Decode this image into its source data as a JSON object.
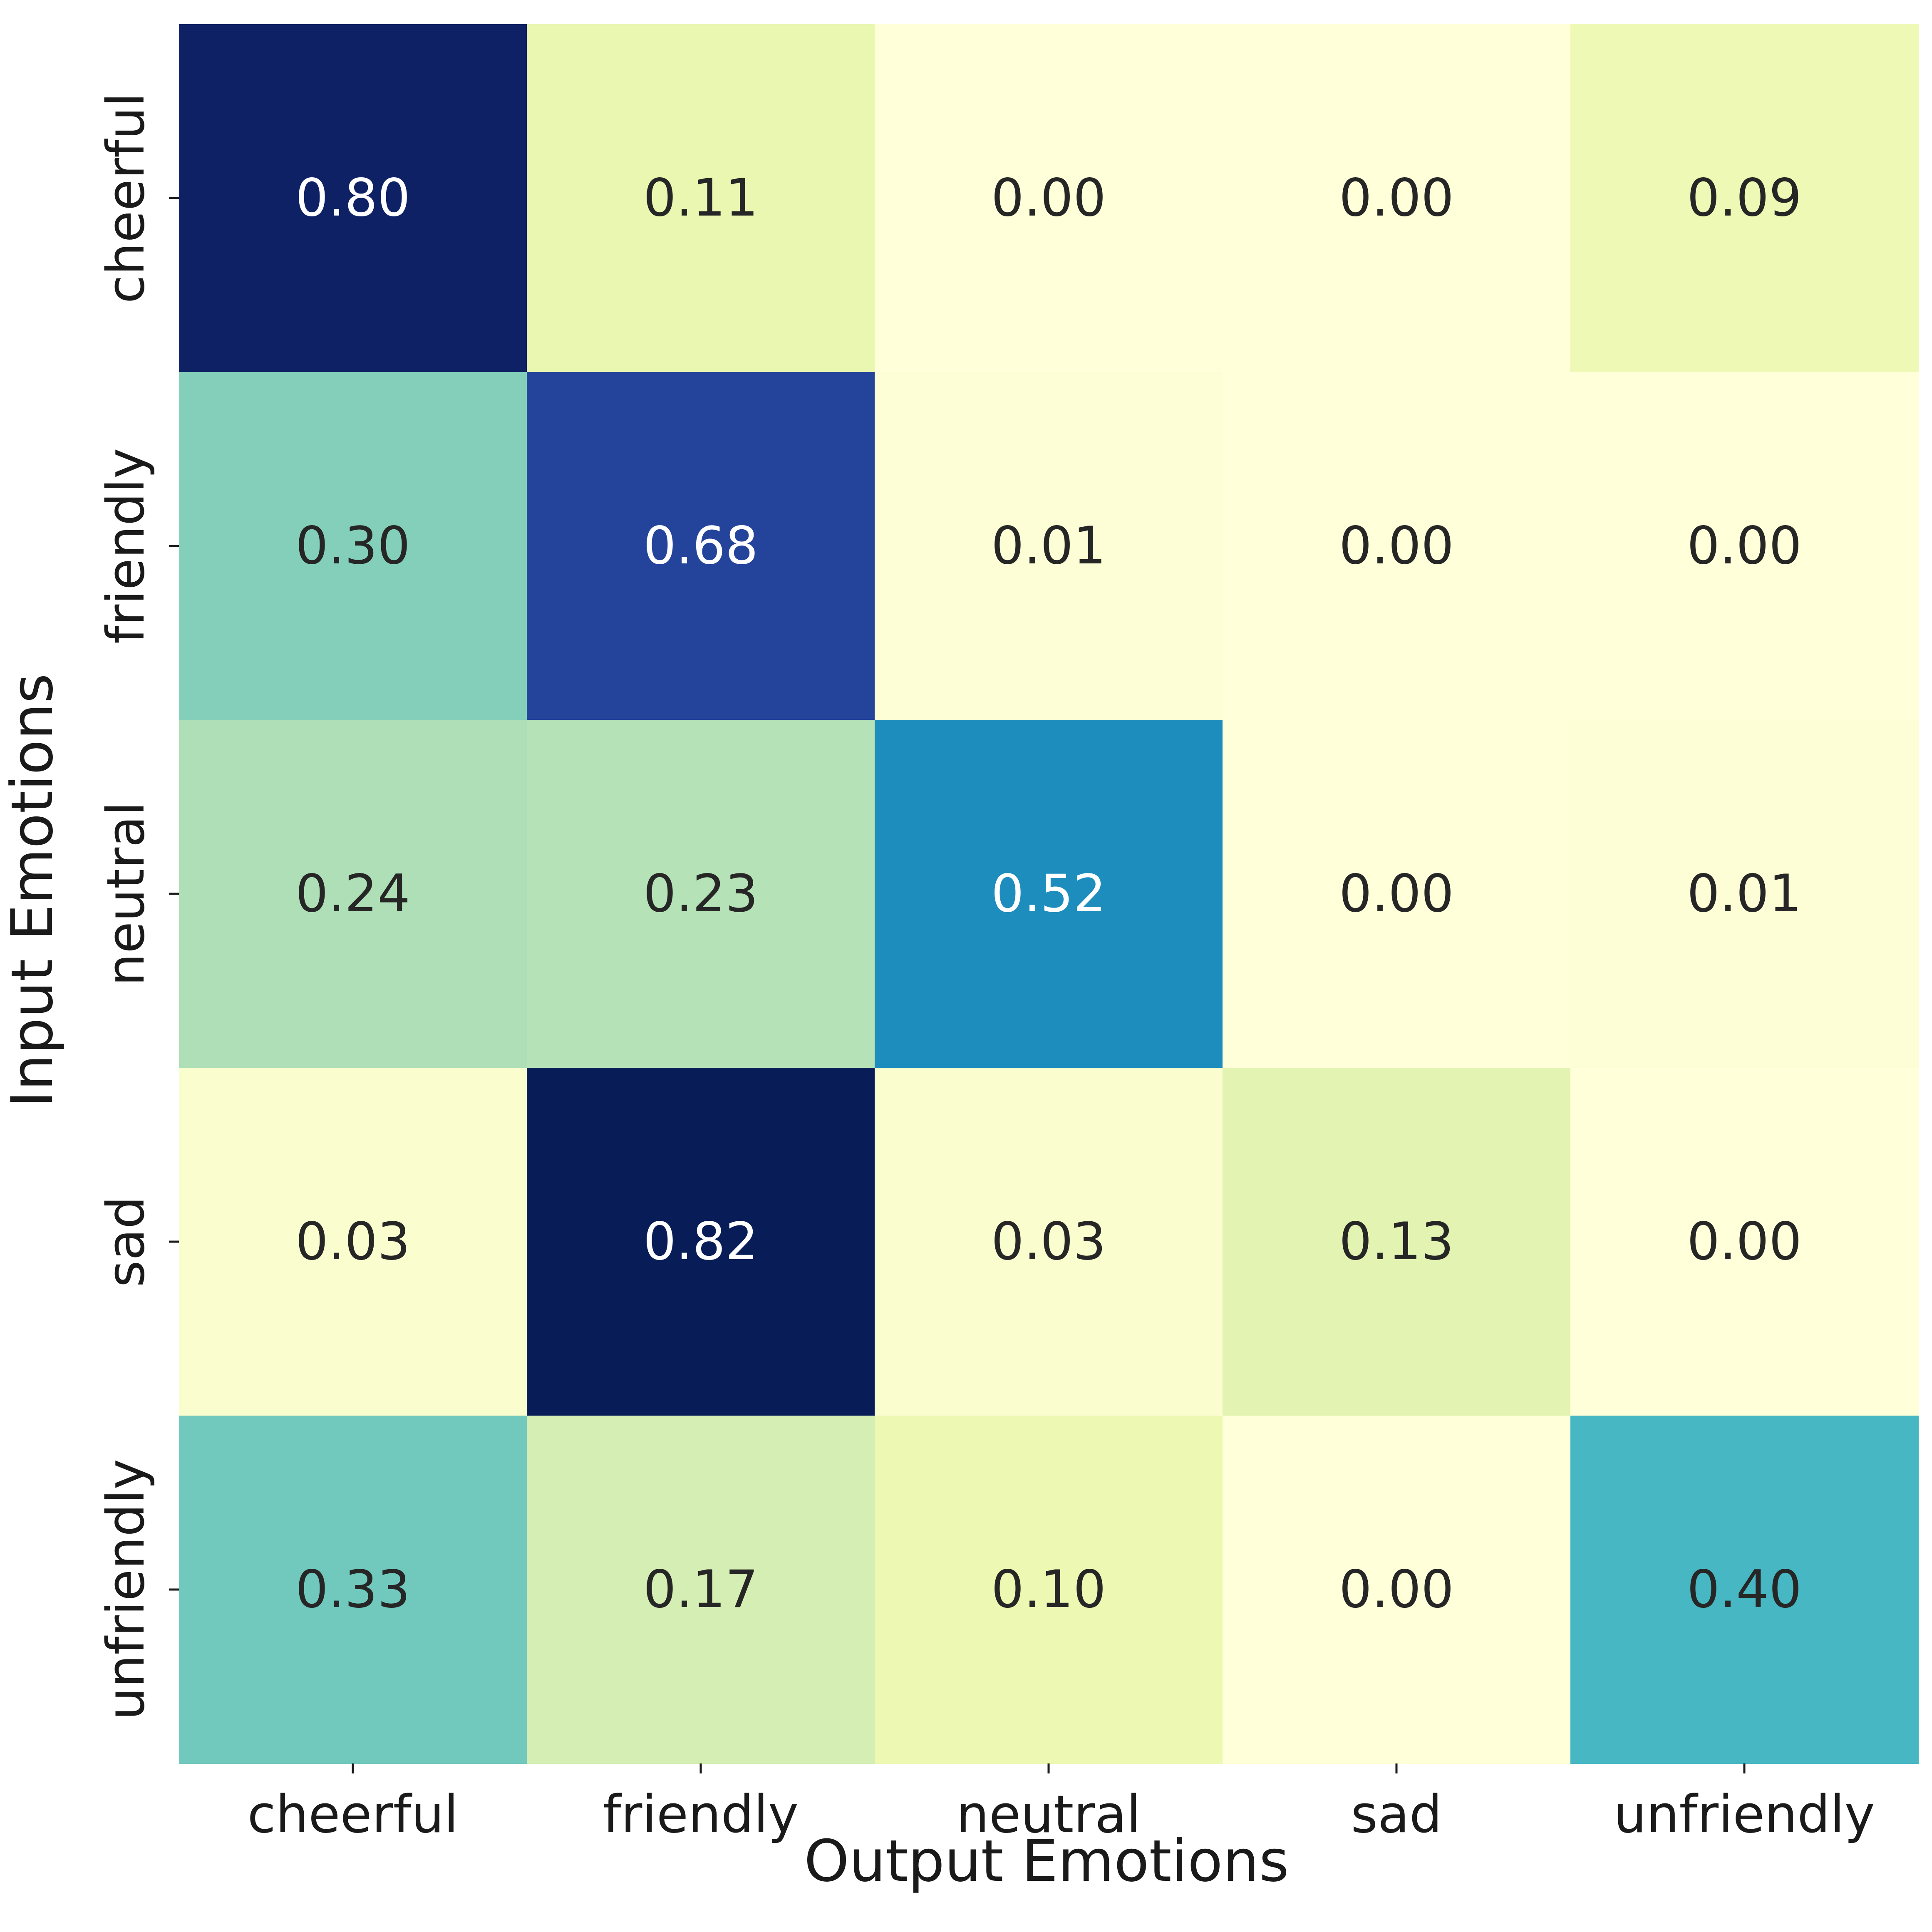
{
  "chart_data": {
    "type": "heatmap",
    "title": "",
    "xlabel": "Output Emotions",
    "ylabel": "Input Emotions",
    "x_categories": [
      "cheerful",
      "friendly",
      "neutral",
      "sad",
      "unfriendly"
    ],
    "y_categories": [
      "cheerful",
      "friendly",
      "neutral",
      "sad",
      "unfriendly"
    ],
    "values": [
      [
        0.8,
        0.11,
        0.0,
        0.0,
        0.09
      ],
      [
        0.3,
        0.68,
        0.01,
        0.0,
        0.0
      ],
      [
        0.24,
        0.23,
        0.52,
        0.0,
        0.01
      ],
      [
        0.03,
        0.82,
        0.03,
        0.13,
        0.0
      ],
      [
        0.33,
        0.17,
        0.1,
        0.0,
        0.4
      ]
    ],
    "value_format": "0.00",
    "colormap": "YlGnBu",
    "colorbar": false,
    "grid": false
  }
}
